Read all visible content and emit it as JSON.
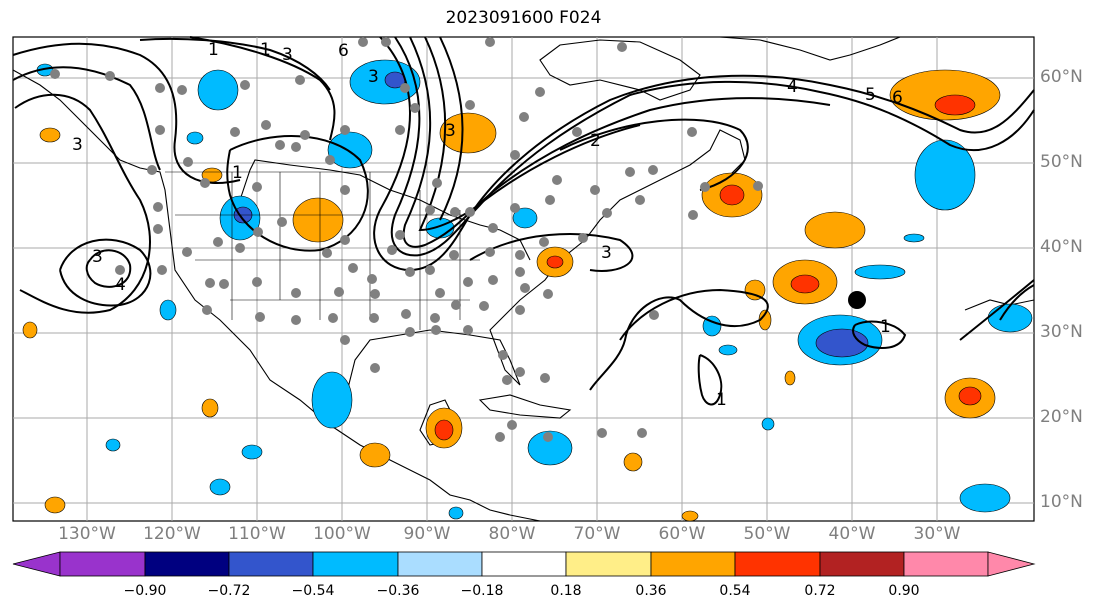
{
  "title": "2023091600 F024",
  "lat_labels": [
    "60°N",
    "50°N",
    "40°N",
    "30°N",
    "20°N",
    "10°N"
  ],
  "lon_labels": [
    "130°W",
    "120°W",
    "110°W",
    "100°W",
    "90°W",
    "80°W",
    "70°W",
    "60°W",
    "50°W",
    "40°W",
    "30°W"
  ],
  "colorbar": {
    "ticks": [
      "−0.90",
      "−0.72",
      "−0.54",
      "−0.36",
      "−0.18",
      "0.18",
      "0.36",
      "0.54",
      "0.72",
      "0.90"
    ],
    "colors": [
      "#9933cc",
      "#000080",
      "#3355cc",
      "#00bbff",
      "#aaddff",
      "#ffffff",
      "#ffee88",
      "#ffa500",
      "#ff3300",
      "#b22222",
      "#ff88aa"
    ]
  },
  "contour_labels": [
    "1",
    "1",
    "3",
    "6",
    "3",
    "3",
    "2",
    "4",
    "5",
    "6",
    "3",
    "3",
    "4",
    "1",
    "1",
    "1",
    "3"
  ],
  "colors": {
    "orange": "#ffa500",
    "red": "#ff3300",
    "blue": "#00bbff",
    "darkblue": "#3355cc",
    "station": "#808080"
  }
}
